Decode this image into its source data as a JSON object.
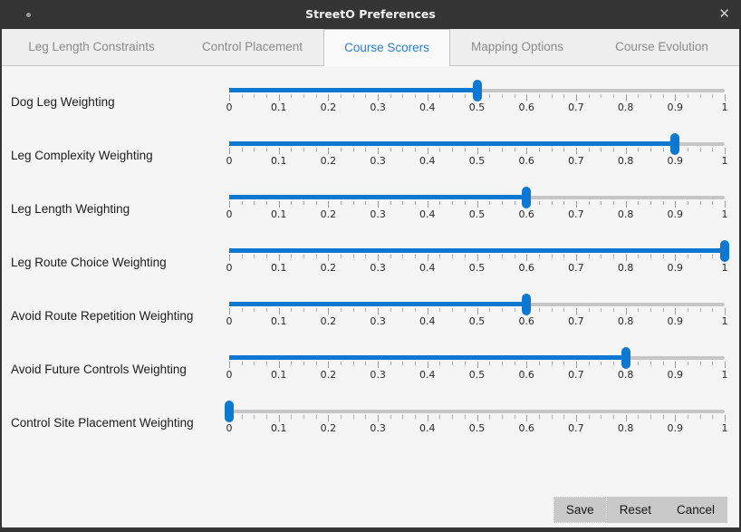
{
  "window": {
    "title": "StreetO Preferences",
    "close_glyph": "✕"
  },
  "tabs": [
    {
      "label": "Leg Length Constraints",
      "active": false
    },
    {
      "label": "Control Placement",
      "active": false
    },
    {
      "label": "Course Scorers",
      "active": true
    },
    {
      "label": "Mapping Options",
      "active": false
    },
    {
      "label": "Course Evolution",
      "active": false
    }
  ],
  "sliders": {
    "min": 0,
    "max": 1,
    "tick_labels": [
      "0",
      "0.1",
      "0.2",
      "0.3",
      "0.4",
      "0.5",
      "0.6",
      "0.7",
      "0.8",
      "0.9",
      "1"
    ],
    "items": [
      {
        "label": "Dog Leg Weighting",
        "value": 0.5
      },
      {
        "label": "Leg Complexity Weighting",
        "value": 0.9
      },
      {
        "label": "Leg Length Weighting",
        "value": 0.6
      },
      {
        "label": "Leg Route Choice Weighting",
        "value": 1
      },
      {
        "label": "Avoid Route Repetition Weighting",
        "value": 0.6
      },
      {
        "label": "Avoid Future Controls Weighting",
        "value": 0.8
      },
      {
        "label": "Control Site Placement Weighting",
        "value": 0
      }
    ]
  },
  "buttons": [
    {
      "label": "Save",
      "focused": true
    },
    {
      "label": "Reset",
      "focused": false
    },
    {
      "label": "Cancel",
      "focused": false
    }
  ],
  "colors": {
    "accent_blue": "#0d78d2",
    "titlebar_bg": "#353535",
    "tab_active_text": "#2a7cd4",
    "content_bg": "#f5f5f5",
    "button_bg": "#c9c9c9"
  }
}
